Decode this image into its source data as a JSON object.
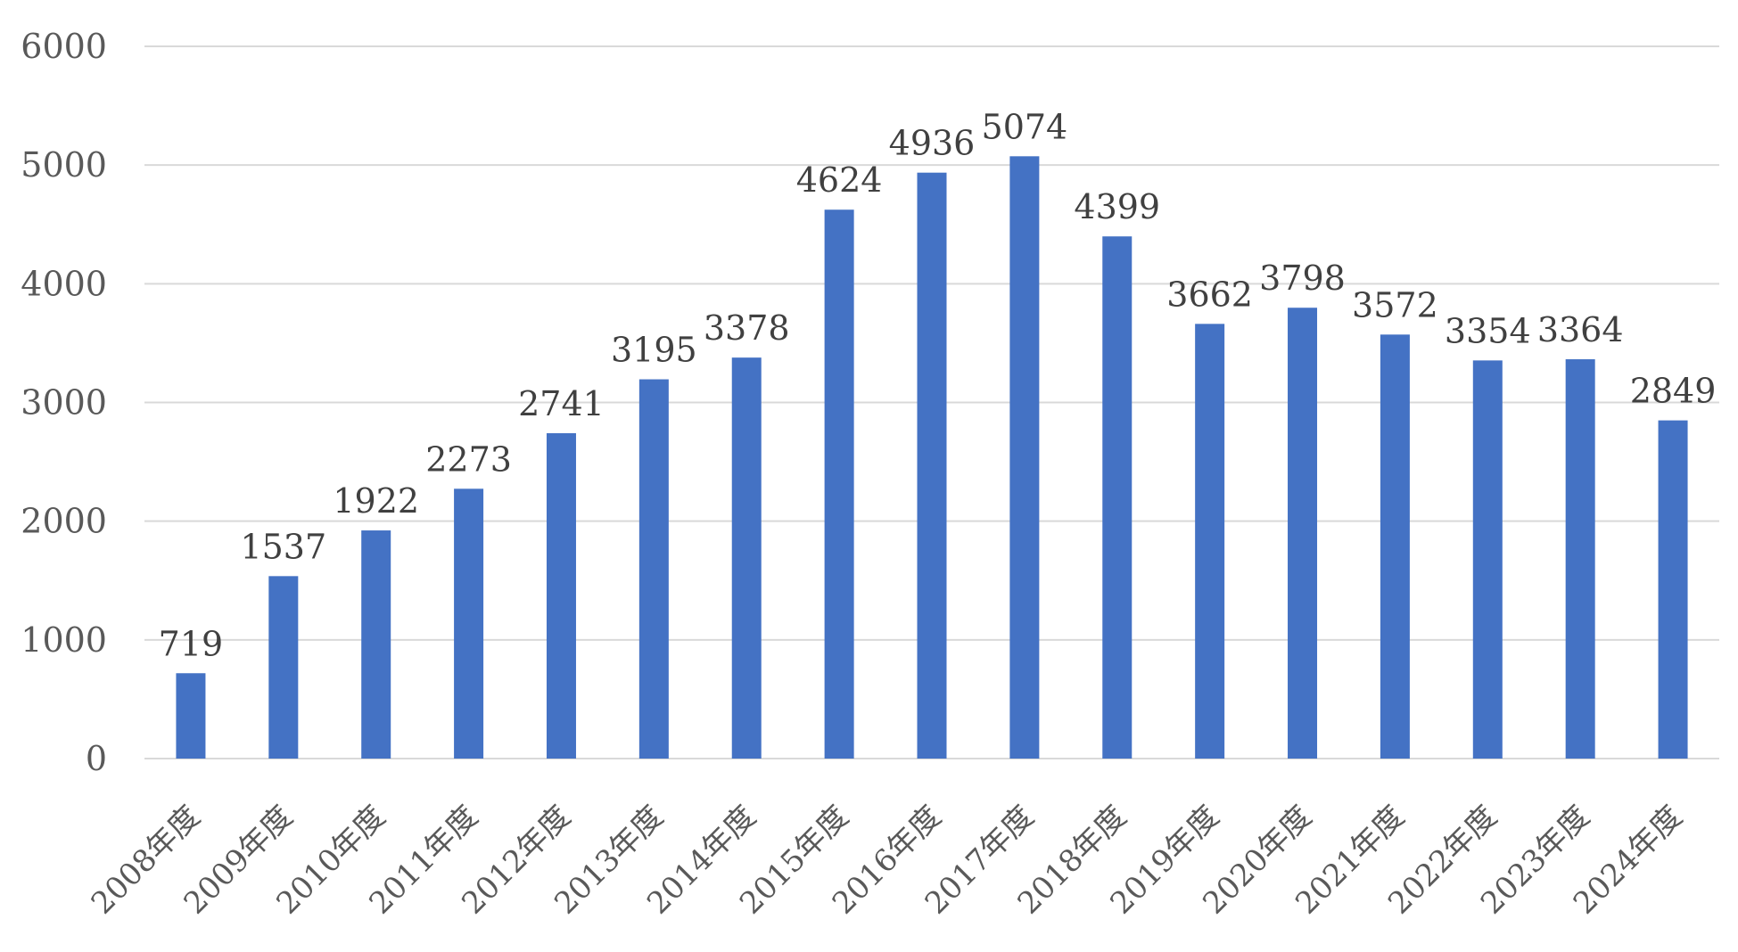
{
  "chart_data": {
    "type": "bar",
    "title": "",
    "xlabel": "",
    "ylabel": "",
    "categories": [
      "2008年度",
      "2009年度",
      "2010年度",
      "2011年度",
      "2012年度",
      "2013年度",
      "2014年度",
      "2015年度",
      "2016年度",
      "2017年度",
      "2018年度",
      "2019年度",
      "2020年度",
      "2021年度",
      "2022年度",
      "2023年度",
      "2024年度"
    ],
    "values": [
      719,
      1537,
      1922,
      2273,
      2741,
      3195,
      3378,
      4624,
      4936,
      5074,
      4399,
      3662,
      3798,
      3572,
      3354,
      3364,
      2849
    ],
    "data_labels": [
      "719",
      "1537",
      "1922",
      "2273",
      "2741",
      "3195",
      "3378",
      "4624",
      "4936",
      "5074",
      "4399",
      "3662",
      "3798",
      "3572",
      "3354",
      "3364",
      "2849"
    ],
    "ylim": [
      0,
      6000
    ],
    "y_ticks": [
      0,
      1000,
      2000,
      3000,
      4000,
      5000,
      6000
    ],
    "y_tick_labels": [
      "0",
      "1000",
      "2000",
      "3000",
      "4000",
      "5000",
      "6000"
    ],
    "grid": true,
    "legend": "none",
    "colors": {
      "bar": "#4472c4",
      "grid": "#d9d9d9",
      "tick_text": "#595959",
      "label_text": "#404040"
    }
  }
}
